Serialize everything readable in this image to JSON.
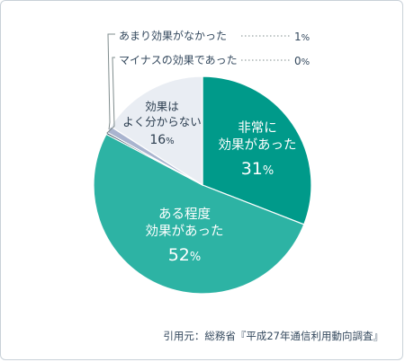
{
  "chart_data": {
    "type": "pie",
    "slices": [
      {
        "label": [
          "非常に",
          "効果があった"
        ],
        "value": 31,
        "display": "31",
        "color": "#009a8a",
        "text_class": "lbl-white",
        "lpos": "inner"
      },
      {
        "label": [
          "ある程度",
          "効果があった"
        ],
        "value": 52,
        "display": "52",
        "color": "#2db3a4",
        "text_class": "lbl-white",
        "lpos": "inner"
      },
      {
        "label": [
          "マイナスの効果であった"
        ],
        "value": 0.3,
        "display": "0",
        "color": "#34495e",
        "text_class": "lbl-dark",
        "lpos": "callout"
      },
      {
        "label": [
          "あまり効果がなかった"
        ],
        "value": 1,
        "display": "1",
        "color": "#a9b4cf",
        "text_class": "lbl-dark",
        "lpos": "callout"
      },
      {
        "label": [
          "効果は",
          "よく分からない"
        ],
        "value": 16,
        "display": "16",
        "color": "#e9edf3",
        "text_class": "lbl-dark",
        "lpos": "inner"
      }
    ],
    "unit": "%"
  },
  "source": "引用元：総務省『平成27年通信利用動向調査』"
}
